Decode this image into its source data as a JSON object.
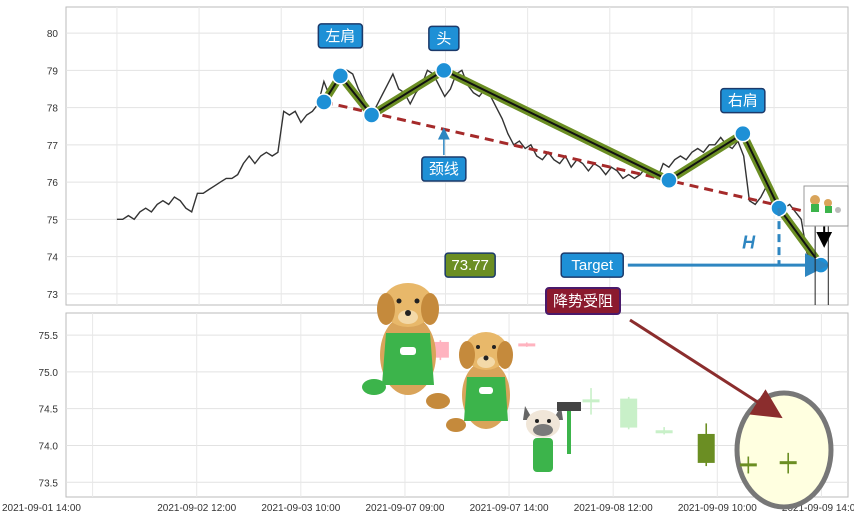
{
  "chart_data": [
    {
      "type": "line",
      "panel": "top",
      "ylim": [
        72.7,
        80.7
      ],
      "y_ticks": [
        73,
        74,
        75,
        76,
        77,
        78,
        79,
        80
      ],
      "grid": true,
      "price_series": [
        [
          0.0,
          75.0
        ],
        [
          0.7,
          75.0
        ],
        [
          1.4,
          75.1
        ],
        [
          2.1,
          75.0
        ],
        [
          2.8,
          75.2
        ],
        [
          3.5,
          75.3
        ],
        [
          4.2,
          75.2
        ],
        [
          4.9,
          75.4
        ],
        [
          5.6,
          75.5
        ],
        [
          6.3,
          75.4
        ],
        [
          7.0,
          75.6
        ],
        [
          7.7,
          75.5
        ],
        [
          8.4,
          75.3
        ],
        [
          9.1,
          75.2
        ],
        [
          9.8,
          75.7
        ],
        [
          10.5,
          75.7
        ],
        [
          11.2,
          75.8
        ],
        [
          11.9,
          75.9
        ],
        [
          12.6,
          76.0
        ],
        [
          13.3,
          76.1
        ],
        [
          14.0,
          76.1
        ],
        [
          14.7,
          76.2
        ],
        [
          15.4,
          76.5
        ],
        [
          16.1,
          76.7
        ],
        [
          16.8,
          76.5
        ],
        [
          17.5,
          76.7
        ],
        [
          18.2,
          76.8
        ],
        [
          18.9,
          76.7
        ],
        [
          19.6,
          76.8
        ],
        [
          20.3,
          77.9
        ],
        [
          21.0,
          77.8
        ],
        [
          21.7,
          77.9
        ],
        [
          22.4,
          77.6
        ],
        [
          23.1,
          77.8
        ],
        [
          23.8,
          77.9
        ],
        [
          24.5,
          78.1
        ],
        [
          25.2,
          78.7
        ],
        [
          25.9,
          78.3
        ],
        [
          26.6,
          78.9
        ],
        [
          27.3,
          78.7
        ],
        [
          28.0,
          79.0
        ],
        [
          28.7,
          78.9
        ],
        [
          29.4,
          78.5
        ],
        [
          30.1,
          78.2
        ],
        [
          30.8,
          77.9
        ],
        [
          31.5,
          78.0
        ],
        [
          32.2,
          78.3
        ],
        [
          32.9,
          78.6
        ],
        [
          33.6,
          78.9
        ],
        [
          34.3,
          78.5
        ],
        [
          35.0,
          78.4
        ],
        [
          35.7,
          78.1
        ],
        [
          36.4,
          78.4
        ],
        [
          37.1,
          78.6
        ],
        [
          37.8,
          79.0
        ],
        [
          38.5,
          78.9
        ],
        [
          39.2,
          78.6
        ],
        [
          39.9,
          78.3
        ],
        [
          40.6,
          78.5
        ],
        [
          41.3,
          78.9
        ],
        [
          42.0,
          79.0
        ],
        [
          42.7,
          78.6
        ],
        [
          43.4,
          78.4
        ],
        [
          44.1,
          78.3
        ],
        [
          44.8,
          78.5
        ],
        [
          45.5,
          78.3
        ],
        [
          46.2,
          78.0
        ],
        [
          46.9,
          77.7
        ],
        [
          47.6,
          77.3
        ],
        [
          48.3,
          77.0
        ],
        [
          49.0,
          77.1
        ],
        [
          49.7,
          76.9
        ],
        [
          50.4,
          77.0
        ],
        [
          51.1,
          76.7
        ],
        [
          51.8,
          76.6
        ],
        [
          52.5,
          76.8
        ],
        [
          53.2,
          76.6
        ],
        [
          53.9,
          76.5
        ],
        [
          54.6,
          76.7
        ],
        [
          55.3,
          76.4
        ],
        [
          56.0,
          76.6
        ],
        [
          56.7,
          76.5
        ],
        [
          57.4,
          76.3
        ],
        [
          58.1,
          76.5
        ],
        [
          58.8,
          76.4
        ],
        [
          59.5,
          76.2
        ],
        [
          60.2,
          76.4
        ],
        [
          60.9,
          76.3
        ],
        [
          61.6,
          76.1
        ],
        [
          62.3,
          76.2
        ],
        [
          63.0,
          76.1
        ],
        [
          63.7,
          76.2
        ],
        [
          64.4,
          76.4
        ],
        [
          65.1,
          76.2
        ],
        [
          65.8,
          76.1
        ],
        [
          66.5,
          76.5
        ],
        [
          67.2,
          76.4
        ],
        [
          67.9,
          76.6
        ],
        [
          68.6,
          76.7
        ],
        [
          69.3,
          76.6
        ],
        [
          70.0,
          76.8
        ],
        [
          70.7,
          76.9
        ],
        [
          71.4,
          76.8
        ],
        [
          72.1,
          77.0
        ],
        [
          72.8,
          77.0
        ],
        [
          73.5,
          77.2
        ],
        [
          74.2,
          77.0
        ],
        [
          74.9,
          76.9
        ],
        [
          75.6,
          77.1
        ],
        [
          76.3,
          76.7
        ],
        [
          77.0,
          75.5
        ],
        [
          77.7,
          75.4
        ],
        [
          78.4,
          75.6
        ],
        [
          79.1,
          75.9
        ],
        [
          79.8,
          75.4
        ],
        [
          80.5,
          75.5
        ],
        [
          81.2,
          75.3
        ],
        [
          81.9,
          75.4
        ],
        [
          82.6,
          75.2
        ],
        [
          83.3,
          75.0
        ],
        [
          84.0,
          74.1
        ],
        [
          84.7,
          73.9
        ],
        [
          85.0,
          73.8
        ]
      ],
      "pattern_points": [
        {
          "x": 25.2,
          "y": 78.15,
          "role": "start"
        },
        {
          "x": 27.2,
          "y": 78.85,
          "role": "left-shoulder"
        },
        {
          "x": 31.0,
          "y": 77.8,
          "role": "trough"
        },
        {
          "x": 39.8,
          "y": 79.0,
          "role": "head"
        },
        {
          "x": 67.2,
          "y": 76.05,
          "role": "trough"
        },
        {
          "x": 76.2,
          "y": 77.3,
          "role": "right-shoulder"
        },
        {
          "x": 80.6,
          "y": 75.3,
          "role": "break"
        },
        {
          "x": 85.7,
          "y": 73.77,
          "role": "target"
        }
      ],
      "neckline": {
        "from": {
          "x": 25.2,
          "y": 78.15
        },
        "to": {
          "x": 87.0,
          "y": 75.05
        }
      },
      "target_line": {
        "from": {
          "x": 62.2,
          "y": 73.77
        },
        "to": {
          "x": 85.2,
          "y": 73.77
        }
      },
      "height_marker": {
        "x": 80.6,
        "from": 75.3,
        "to": 73.77
      },
      "annotations": {
        "left_shoulder": "左肩",
        "head": "头",
        "right_shoulder": "右肩",
        "neckline": "颈线",
        "target_price": "73.77",
        "target_label": "Target",
        "height_label": "H"
      }
    },
    {
      "type": "candlestick",
      "panel": "bottom",
      "ylim": [
        73.3,
        75.8
      ],
      "y_ticks": [
        "73.5",
        "74.0",
        "74.5",
        "75.0",
        "75.5"
      ],
      "x_tick_labels": [
        "2021-09-01 14:00",
        "2021-09-02 12:00",
        "2021-09-03 10:00",
        "2021-09-07 09:00",
        "2021-09-07 14:00",
        "2021-09-08 12:00",
        "2021-09-09 10:00",
        "2021-09-09 14:00"
      ],
      "grid": true,
      "annotation": "降势受阻",
      "candles": [
        {
          "x": 13.6,
          "open": 75.16,
          "close": 75.16,
          "high": 75.23,
          "low": 75.08,
          "color": "#ffb3bf"
        },
        {
          "x": 15.7,
          "open": 75.2,
          "close": 75.4,
          "high": 75.43,
          "low": 75.16,
          "color": "#ffb3bf"
        },
        {
          "x": 17.7,
          "open": 75.35,
          "close": 75.35,
          "high": 75.41,
          "low": 75.25,
          "color": "#c8f0c8"
        },
        {
          "x": 19.6,
          "open": 75.38,
          "close": 75.38,
          "high": 75.4,
          "low": 75.34,
          "color": "#ffb3bf"
        },
        {
          "x": 22.5,
          "open": 74.62,
          "close": 74.62,
          "high": 74.78,
          "low": 74.42,
          "color": "#c8f0c8"
        },
        {
          "x": 24.2,
          "open": 74.63,
          "close": 74.25,
          "high": 74.66,
          "low": 74.22,
          "color": "#c8f0c8"
        },
        {
          "x": 25.8,
          "open": 74.2,
          "close": 74.2,
          "high": 74.25,
          "low": 74.15,
          "color": "#c8f0c8"
        },
        {
          "x": 27.7,
          "open": 74.15,
          "close": 73.77,
          "high": 74.3,
          "low": 73.72,
          "color": "#6b8e23"
        },
        {
          "x": 29.6,
          "open": 73.75,
          "close": 73.75,
          "high": 73.85,
          "low": 73.62,
          "color": "#6b8e23"
        },
        {
          "x": 31.4,
          "open": 73.78,
          "close": 73.78,
          "high": 73.9,
          "low": 73.62,
          "color": "#6b8e23"
        }
      ]
    }
  ]
}
